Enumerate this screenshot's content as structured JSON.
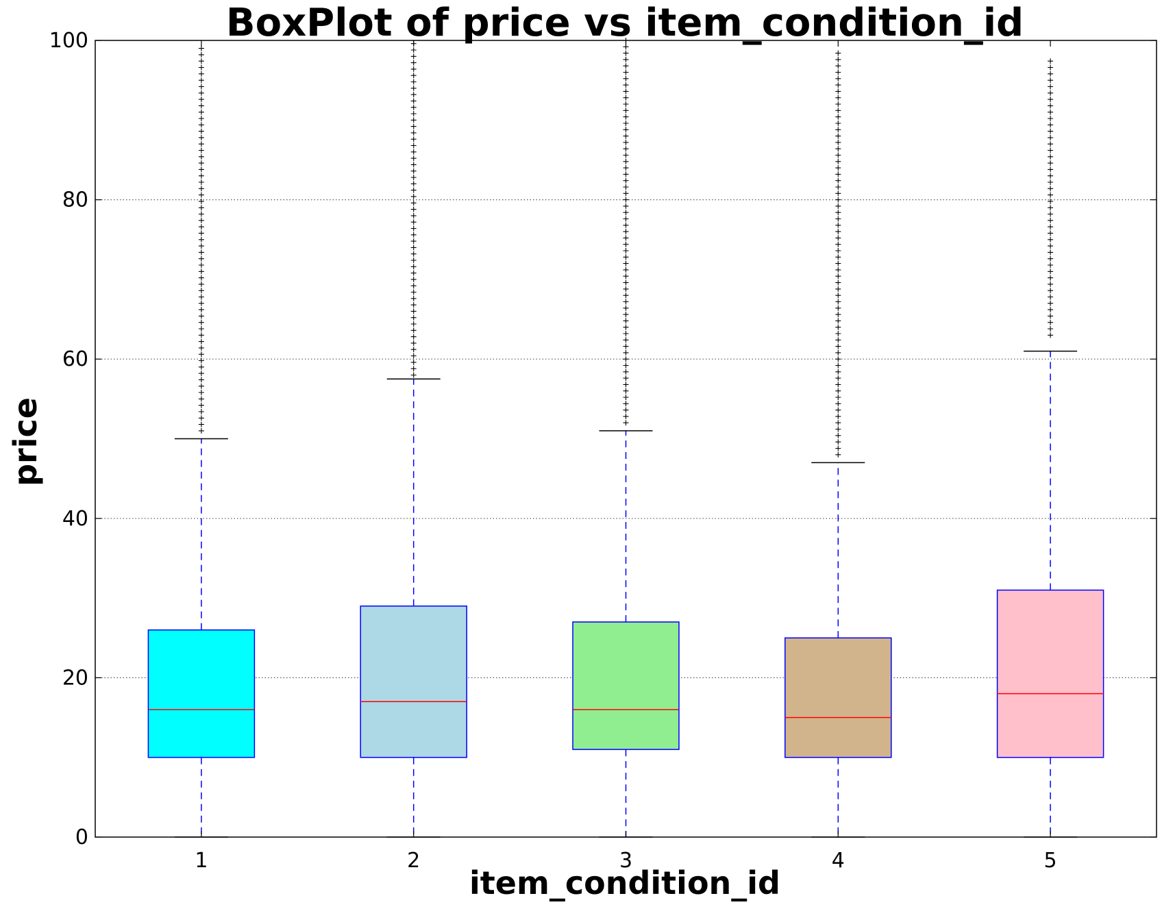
{
  "chart_data": {
    "type": "boxplot",
    "title": "BoxPlot of price vs item_condition_id",
    "xlabel": "item_condition_id",
    "ylabel": "price",
    "ylim": [
      0,
      100
    ],
    "yticks": [
      "0",
      "20",
      "40",
      "60",
      "80",
      "100"
    ],
    "grid": true,
    "categories": [
      "1",
      "2",
      "3",
      "4",
      "5"
    ],
    "boxes": [
      {
        "category": "1",
        "whisker_low": 0,
        "q1": 10,
        "median": 16,
        "q3": 26,
        "whisker_high": 50,
        "fill": "#00ffff",
        "outliers_from": 51,
        "outliers_to": 99
      },
      {
        "category": "2",
        "whisker_low": 0,
        "q1": 10,
        "median": 17,
        "q3": 29,
        "whisker_high": 57.5,
        "fill": "#add8e6",
        "outliers_from": 58,
        "outliers_to": 100
      },
      {
        "category": "3",
        "whisker_low": 0,
        "q1": 11,
        "median": 16,
        "q3": 27,
        "whisker_high": 51,
        "fill": "#90ee90",
        "outliers_from": 52,
        "outliers_to": 100
      },
      {
        "category": "4",
        "whisker_low": 0,
        "q1": 10,
        "median": 15,
        "q3": 25,
        "whisker_high": 47,
        "fill": "#d2b48c",
        "outliers_from": 48,
        "outliers_to": 99
      },
      {
        "category": "5",
        "whisker_low": 0,
        "q1": 10,
        "median": 18,
        "q3": 31,
        "whisker_high": 61,
        "fill": "#ffc0cb",
        "outliers_from": 63,
        "outliers_to": 98
      }
    ],
    "colors": {
      "box_edge": "#0000ff",
      "median": "#ff0000",
      "whisker": "#0000ff",
      "cap": "#000000",
      "outlier": "#000000"
    }
  }
}
